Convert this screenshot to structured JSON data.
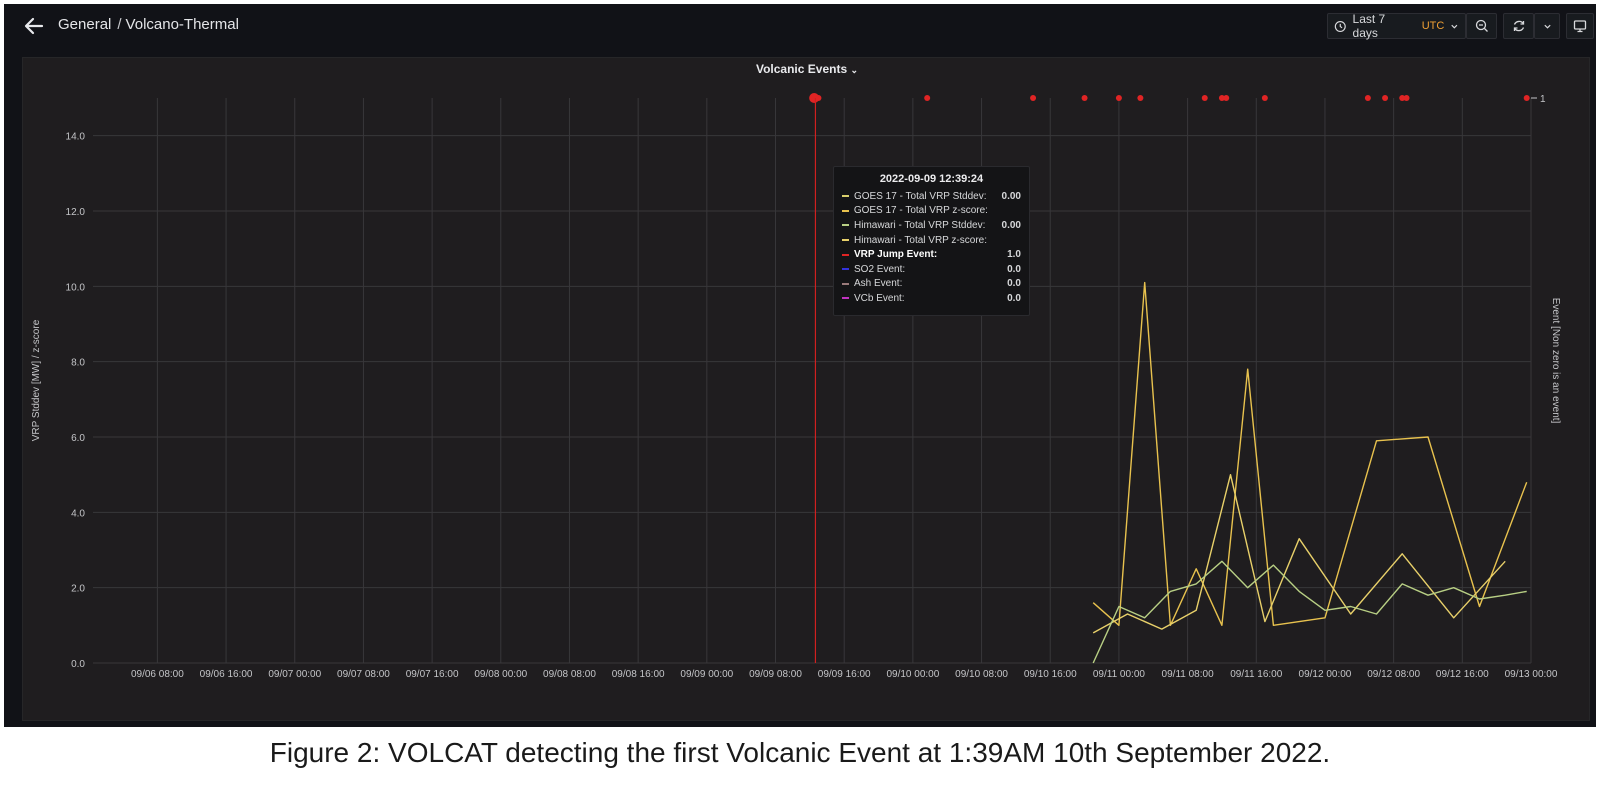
{
  "header": {
    "crumb_root": "General",
    "crumb_sep": "/",
    "crumb_page": "Volcano-Thermal",
    "time_range": "Last 7 days",
    "timezone": "UTC",
    "icons": [
      "back-arrow-icon",
      "clock-icon",
      "zoom-out-icon",
      "refresh-icon",
      "chevron-down-icon",
      "tv-icon"
    ]
  },
  "panel": {
    "title": "Volcanic Events"
  },
  "tooltip": {
    "title": "2022-09-09 12:39:24",
    "rows": [
      {
        "name": "GOES 17 - Total VRP Stddev:",
        "value": "0.00",
        "color": "#d9cf6c"
      },
      {
        "name": "GOES 17 - Total VRP z-score:",
        "value": "",
        "color": "#e8c24e"
      },
      {
        "name": "Himawari - Total VRP Stddev:",
        "value": "0.00",
        "color": "#b8cf84"
      },
      {
        "name": "Himawari - Total VRP z-score:",
        "value": "",
        "color": "#e8d06a"
      },
      {
        "name": "VRP Jump Event:",
        "value": "1.0",
        "color": "#e02424",
        "bold": true
      },
      {
        "name": "SO2 Event:",
        "value": "0.0",
        "color": "#3333dd"
      },
      {
        "name": "Ash Event:",
        "value": "0.0",
        "color": "#9a7a7a"
      },
      {
        "name": "VCb Event:",
        "value": "0.0",
        "color": "#c033c0"
      }
    ]
  },
  "legend_left": [
    {
      "name": "GOES 17 - Total VRP Stddev",
      "color": "#d9cf6c"
    },
    {
      "name": "GOES 17 - Total VRP z-score",
      "color": "#e8c24e"
    },
    {
      "name": "Himawari - Total VRP Stddev",
      "color": "#b8cf84"
    },
    {
      "name": "Himawari - Total VRP z-score",
      "color": "#e8d06a"
    }
  ],
  "legend_right": [
    {
      "name": "VCb Event",
      "color": "#c033c0"
    },
    {
      "name": "Ash Event",
      "color": "#9a7a7a"
    },
    {
      "name": "SO2 Event",
      "color": "#3333dd"
    },
    {
      "name": "VRP Jump Event",
      "color": "#e02424"
    }
  ],
  "caption": "Figure 2: VOLCAT detecting the first Volcanic Event at 1:39AM 10th September 2022.",
  "chart_data": {
    "type": "line",
    "title": "Volcanic Events",
    "ylabel": "VRP Stddev [MW] / z-score",
    "ylabel_right": "Event [Non zero is an event]",
    "ylim": [
      0,
      15
    ],
    "yticks": [
      "0.0",
      "2.0",
      "4.0",
      "6.0",
      "8.0",
      "10.0",
      "12.0",
      "14.0"
    ],
    "y2_tick": "1",
    "xlim": [
      "2022-09-06 00:30",
      "2022-09-13 00:00"
    ],
    "xticks": [
      "09/06 08:00",
      "09/06 16:00",
      "09/07 00:00",
      "09/07 08:00",
      "09/07 16:00",
      "09/08 00:00",
      "09/08 08:00",
      "09/08 16:00",
      "09/09 00:00",
      "09/09 08:00",
      "09/09 16:00",
      "09/10 00:00",
      "09/10 08:00",
      "09/10 16:00",
      "09/11 00:00",
      "09/11 08:00",
      "09/11 16:00",
      "09/12 00:00",
      "09/12 08:00",
      "09/12 16:00",
      "09/13 00:00"
    ],
    "grid": true,
    "cursor_time": "2022-09-09 12:39",
    "series": [
      {
        "name": "GOES 17 - Total VRP z-score",
        "color": "#e8c24e",
        "x": [
          "2022-09-10 21:00",
          "2022-09-11 00:00",
          "2022-09-11 03:00",
          "2022-09-11 06:00",
          "2022-09-11 09:00",
          "2022-09-11 12:00",
          "2022-09-11 15:00",
          "2022-09-11 18:00",
          "2022-09-12 00:00",
          "2022-09-12 06:00",
          "2022-09-12 12:00",
          "2022-09-12 18:00",
          "2022-09-12 23:30"
        ],
        "values": [
          1.6,
          1.0,
          10.1,
          1.0,
          2.5,
          1.0,
          7.8,
          1.0,
          1.2,
          5.9,
          6.0,
          1.5,
          4.8
        ]
      },
      {
        "name": "Himawari - Total VRP z-score",
        "color": "#e8d06a",
        "x": [
          "2022-09-10 21:00",
          "2022-09-11 01:00",
          "2022-09-11 05:00",
          "2022-09-11 09:00",
          "2022-09-11 13:00",
          "2022-09-11 17:00",
          "2022-09-11 21:00",
          "2022-09-12 03:00",
          "2022-09-12 09:00",
          "2022-09-12 15:00",
          "2022-09-12 21:00"
        ],
        "values": [
          0.8,
          1.3,
          0.9,
          1.4,
          5.0,
          1.1,
          3.3,
          1.3,
          2.9,
          1.2,
          2.7
        ]
      },
      {
        "name": "Himawari - Total VRP Stddev",
        "color": "#b8cf84",
        "x": [
          "2022-09-10 21:00",
          "2022-09-11 00:00",
          "2022-09-11 03:00",
          "2022-09-11 06:00",
          "2022-09-11 09:00",
          "2022-09-11 12:00",
          "2022-09-11 15:00",
          "2022-09-11 18:00",
          "2022-09-11 21:00",
          "2022-09-12 00:00",
          "2022-09-12 03:00",
          "2022-09-12 06:00",
          "2022-09-12 09:00",
          "2022-09-12 12:00",
          "2022-09-12 15:00",
          "2022-09-12 18:00",
          "2022-09-12 21:00",
          "2022-09-12 23:30"
        ],
        "values": [
          0.0,
          1.5,
          1.2,
          1.9,
          2.1,
          2.7,
          2.0,
          2.6,
          1.9,
          1.4,
          1.5,
          1.3,
          2.1,
          1.8,
          2.0,
          1.7,
          1.8,
          1.9
        ]
      },
      {
        "name": "GOES 17 - Total VRP Stddev",
        "color": "#d9cf6c",
        "x": [
          "2022-09-09 12:39"
        ],
        "values": [
          0.0
        ]
      },
      {
        "name": "VRP Jump Event",
        "color": "#e02424",
        "axis": "right",
        "x": [
          "2022-09-09 12:30",
          "2022-09-09 13:00",
          "2022-09-10 01:40",
          "2022-09-10 14:00",
          "2022-09-10 20:00",
          "2022-09-11 00:00",
          "2022-09-11 02:30",
          "2022-09-11 10:00",
          "2022-09-11 12:00",
          "2022-09-11 12:30",
          "2022-09-11 17:00",
          "2022-09-12 05:00",
          "2022-09-12 07:00",
          "2022-09-12 09:00",
          "2022-09-12 09:30",
          "2022-09-12 23:30"
        ],
        "values": [
          1,
          1,
          1,
          1,
          1,
          1,
          1,
          1,
          1,
          1,
          1,
          1,
          1,
          1,
          1,
          1
        ]
      },
      {
        "name": "SO2 Event",
        "color": "#3333dd",
        "x": [],
        "values": []
      },
      {
        "name": "Ash Event",
        "color": "#9a7a7a",
        "x": [],
        "values": []
      },
      {
        "name": "VCb Event",
        "color": "#c033c0",
        "x": [],
        "values": []
      }
    ]
  }
}
